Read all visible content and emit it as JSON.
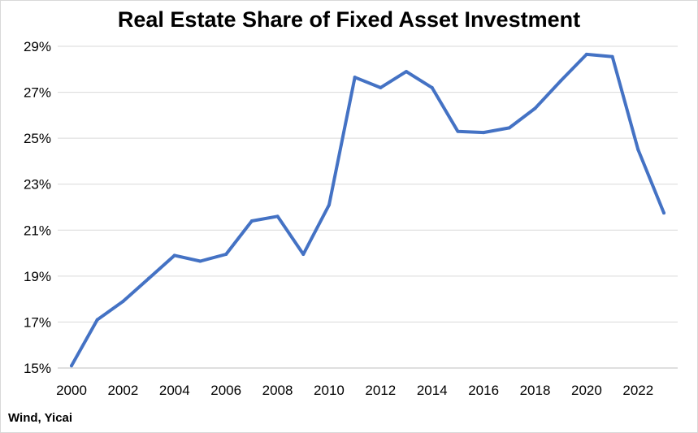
{
  "chart_data": {
    "type": "line",
    "title": "Real Estate Share of Fixed Asset Investment",
    "source": "Wind, Yicai",
    "xlabel": "",
    "ylabel": "",
    "ylim": [
      15,
      29
    ],
    "y_ticks": [
      "15%",
      "17%",
      "19%",
      "21%",
      "23%",
      "25%",
      "27%",
      "29%"
    ],
    "y_tick_values": [
      15,
      17,
      19,
      21,
      23,
      25,
      27,
      29
    ],
    "x_ticks": [
      "2000",
      "2002",
      "2004",
      "2006",
      "2008",
      "2010",
      "2012",
      "2014",
      "2016",
      "2018",
      "2020",
      "2022"
    ],
    "x": [
      2000,
      2001,
      2002,
      2003,
      2004,
      2005,
      2006,
      2007,
      2008,
      2009,
      2010,
      2011,
      2012,
      2013,
      2014,
      2015,
      2016,
      2017,
      2018,
      2019,
      2020,
      2021,
      2022,
      2023
    ],
    "series": [
      {
        "color": "#4472c4",
        "values": [
          15.1,
          17.1,
          17.9,
          18.9,
          19.9,
          19.65,
          19.95,
          21.4,
          21.6,
          19.95,
          22.1,
          27.65,
          27.2,
          27.9,
          27.2,
          25.3,
          25.25,
          25.45,
          26.3,
          27.5,
          28.65,
          28.55,
          24.5,
          21.75
        ]
      }
    ],
    "grid": true,
    "legend": "none"
  }
}
